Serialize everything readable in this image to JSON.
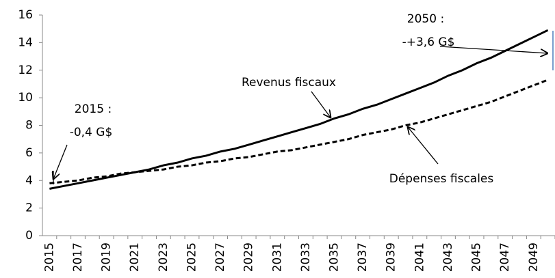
{
  "chart_data": {
    "type": "line",
    "categories": [
      "2015",
      null,
      "2017",
      null,
      "2019",
      null,
      "2021",
      null,
      "2023",
      null,
      "2025",
      null,
      "2027",
      null,
      "2029",
      null,
      "2031",
      null,
      "2033",
      null,
      "2035",
      null,
      "2037",
      null,
      "2039",
      null,
      "2041",
      null,
      "2043",
      null,
      "2045",
      null,
      "2047",
      null,
      "2049",
      null
    ],
    "series": [
      {
        "name": "Revenus fiscaux",
        "color": "#000000",
        "style": "solid",
        "values": [
          3.4,
          3.6,
          3.8,
          4.0,
          4.2,
          4.4,
          4.6,
          4.8,
          5.1,
          5.3,
          5.6,
          5.8,
          6.1,
          6.3,
          6.6,
          6.9,
          7.2,
          7.5,
          7.8,
          8.1,
          8.5,
          8.8,
          9.2,
          9.5,
          9.9,
          10.3,
          10.7,
          11.1,
          11.6,
          12.0,
          12.5,
          12.9,
          13.4,
          13.9,
          14.4,
          14.9
        ]
      },
      {
        "name": "Dépenses fiscales",
        "color": "#000000",
        "style": "dashed",
        "values": [
          3.8,
          3.9,
          4.0,
          4.2,
          4.3,
          4.5,
          4.6,
          4.7,
          4.8,
          5.0,
          5.1,
          5.3,
          5.4,
          5.6,
          5.7,
          5.9,
          6.1,
          6.2,
          6.4,
          6.6,
          6.8,
          7.0,
          7.3,
          7.5,
          7.7,
          8.0,
          8.2,
          8.5,
          8.8,
          9.1,
          9.4,
          9.7,
          10.1,
          10.5,
          10.9,
          11.3
        ]
      }
    ],
    "annotations": [
      {
        "lines": [
          "2015 :",
          "-0,4 G$"
        ]
      },
      {
        "lines": [
          "2050 :",
          "-+3,6 G$"
        ]
      }
    ],
    "ylim": [
      0,
      16
    ],
    "yticks": [
      0,
      2,
      4,
      6,
      8,
      10,
      12,
      14,
      16
    ],
    "grid": false
  }
}
